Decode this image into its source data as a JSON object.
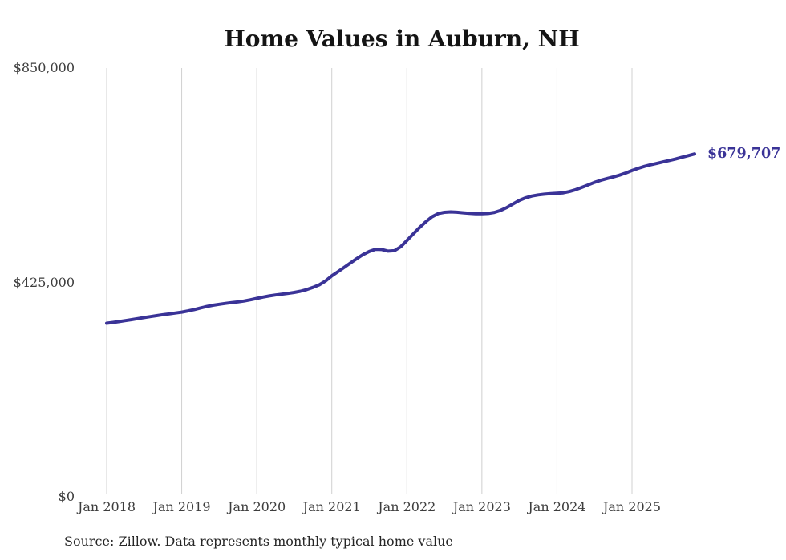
{
  "page": {
    "title": "Home Values in Auburn, NH",
    "source_note": "Source: Zillow. Data represents monthly typical home value"
  },
  "chart_data": {
    "type": "line",
    "title": "Home Values in Auburn, NH",
    "source": "Source: Zillow. Data represents monthly typical home value",
    "end_label": "$679,707",
    "line_color": "#3a3397",
    "end_label_color": "#3a3397",
    "gridline_color": "#d0d0d0",
    "grid": "vertical-only",
    "legend": "none",
    "x_tick_labels": [
      "Jan 2018",
      "Jan 2019",
      "Jan 2020",
      "Jan 2021",
      "Jan 2022",
      "Jan 2023",
      "Jan 2024",
      "Jan 2025"
    ],
    "y_axis": {
      "min": 0,
      "max": 850000,
      "ticks": [
        {
          "label": "$850,000",
          "value": 850000
        },
        {
          "label": "$425,000",
          "value": 425000
        },
        {
          "label": "$0",
          "value": 0
        }
      ]
    },
    "series": [
      {
        "name": "Monthly typical home value",
        "months": [
          "2018-01",
          "2018-02",
          "2018-03",
          "2018-04",
          "2018-05",
          "2018-06",
          "2018-07",
          "2018-08",
          "2018-09",
          "2018-10",
          "2018-11",
          "2018-12",
          "2019-01",
          "2019-02",
          "2019-03",
          "2019-04",
          "2019-05",
          "2019-06",
          "2019-07",
          "2019-08",
          "2019-09",
          "2019-10",
          "2019-11",
          "2019-12",
          "2020-01",
          "2020-02",
          "2020-03",
          "2020-04",
          "2020-05",
          "2020-06",
          "2020-07",
          "2020-08",
          "2020-09",
          "2020-10",
          "2020-11",
          "2020-12",
          "2021-01",
          "2021-02",
          "2021-03",
          "2021-04",
          "2021-05",
          "2021-06",
          "2021-07",
          "2021-08",
          "2021-09",
          "2021-10",
          "2021-11",
          "2021-12",
          "2022-01",
          "2022-02",
          "2022-03",
          "2022-04",
          "2022-05",
          "2022-06",
          "2022-07",
          "2022-08",
          "2022-09",
          "2022-10",
          "2022-11",
          "2022-12",
          "2023-01",
          "2023-02",
          "2023-03",
          "2023-04",
          "2023-05",
          "2023-06",
          "2023-07",
          "2023-08",
          "2023-09",
          "2023-10",
          "2023-11",
          "2023-12",
          "2024-01",
          "2024-02",
          "2024-03",
          "2024-04",
          "2024-05",
          "2024-06",
          "2024-07",
          "2024-08",
          "2024-09",
          "2024-10",
          "2024-11",
          "2024-12",
          "2025-01",
          "2025-02",
          "2025-03",
          "2025-04",
          "2025-05",
          "2025-06",
          "2025-07",
          "2025-08",
          "2025-09",
          "2025-10",
          "2025-11"
        ],
        "values": [
          344000,
          345600,
          347300,
          349200,
          351200,
          353200,
          355200,
          357200,
          359100,
          360900,
          362600,
          364300,
          366100,
          368400,
          371200,
          374300,
          377200,
          379700,
          381700,
          383400,
          384900,
          386400,
          388200,
          390500,
          393300,
          395900,
          398100,
          400000,
          401600,
          403200,
          405100,
          407600,
          410900,
          415100,
          420300,
          427800,
          438000,
          446500,
          455000,
          463800,
          472300,
          480300,
          486500,
          490800,
          490300,
          487200,
          487900,
          495500,
          508000,
          521000,
          533500,
          545000,
          555000,
          561500,
          564000,
          564800,
          564200,
          563000,
          562000,
          561300,
          561200,
          561800,
          563800,
          567800,
          573600,
          580700,
          587700,
          592800,
          596200,
          598500,
          600000,
          600900,
          601600,
          602700,
          605100,
          608900,
          613400,
          618400,
          623300,
          627400,
          630900,
          634100,
          637600,
          641900,
          646800,
          651200,
          655000,
          658200,
          661100,
          663900,
          666800,
          669900,
          673100,
          676400,
          679707
        ]
      }
    ]
  }
}
